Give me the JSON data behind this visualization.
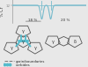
{
  "bg_color": "#e8e8e8",
  "top_plot": {
    "ylabel": "% Cr",
    "ytick": "12",
    "line_color": "#77bbcc",
    "annotation_18": "18 %",
    "annotation_20": "20 %"
  },
  "structure": {
    "grain_color": "#555555",
    "carbide_color": "#55bbcc",
    "lw": 0.6
  },
  "legend": {
    "grain_label": "grain/boundaries",
    "carbide_label": "carbides",
    "grain_color": "#777777",
    "carbide_color": "#55bbcc"
  }
}
